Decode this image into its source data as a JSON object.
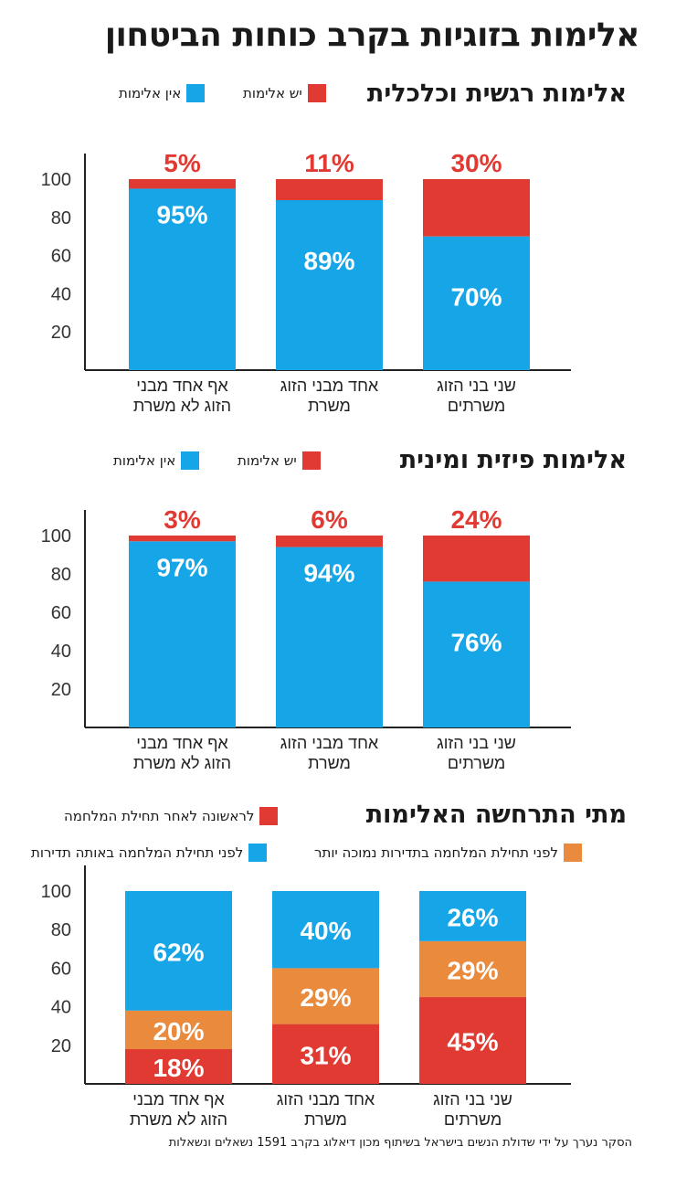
{
  "title": "אלימות בזוגיות בקרב כוחות הביטחון",
  "footnote": "הסקר נערך על ידי שדולת הנשים בישראל בשיתוף מכון דיאלוג בקרב 1591 נשאלים ונשאלות",
  "colors": {
    "red": "#e03a33",
    "blue": "#16a5e6",
    "orange": "#e98a3d",
    "axis": "#222222"
  },
  "chart_data": [
    {
      "type": "bar",
      "stacked": true,
      "title": "אלימות רגשית וכלכלית",
      "categories": [
        "שני בני הזוג משרתים",
        "אחד מבני הזוג משרת",
        "אף אחד מבני הזוג לא משרת"
      ],
      "category_lines": [
        [
          "שני בני הזוג",
          "משרתים"
        ],
        [
          "אחד מבני הזוג",
          "משרת"
        ],
        [
          "אף אחד מבני",
          "הזוג לא משרת"
        ]
      ],
      "series": [
        {
          "name": "אין אלימות",
          "color": "#16a5e6",
          "values": [
            70,
            89,
            95
          ],
          "labels": [
            "70%",
            "89%",
            "95%"
          ]
        },
        {
          "name": "יש אלימות",
          "color": "#e03a33",
          "values": [
            30,
            11,
            5
          ],
          "labels": [
            "30%",
            "11%",
            "5%"
          ]
        }
      ],
      "label_above_series": 1,
      "yticks": [
        20,
        40,
        60,
        80,
        100
      ],
      "ylim": [
        0,
        100
      ],
      "legend": [
        "יש אלימות",
        "אין אלימות"
      ]
    },
    {
      "type": "bar",
      "stacked": true,
      "title": "אלימות פיזית ומינית",
      "categories": [
        "שני בני הזוג משרתים",
        "אחד מבני הזוג משרת",
        "אף אחד מבני הזוג לא משרת"
      ],
      "category_lines": [
        [
          "שני בני הזוג",
          "משרתים"
        ],
        [
          "אחד מבני הזוג",
          "משרת"
        ],
        [
          "אף אחד מבני",
          "הזוג לא משרת"
        ]
      ],
      "series": [
        {
          "name": "אין אלימות",
          "color": "#16a5e6",
          "values": [
            76,
            94,
            97
          ],
          "labels": [
            "76%",
            "94%",
            "97%"
          ]
        },
        {
          "name": "יש אלימות",
          "color": "#e03a33",
          "values": [
            24,
            6,
            3
          ],
          "labels": [
            "24%",
            "6%",
            "3%"
          ]
        }
      ],
      "label_above_series": 1,
      "yticks": [
        20,
        40,
        60,
        80,
        100
      ],
      "ylim": [
        0,
        100
      ],
      "legend": [
        "יש אלימות",
        "אין אלימות"
      ]
    },
    {
      "type": "bar",
      "stacked": true,
      "title": "מתי התרחשה האלימות",
      "categories": [
        "שני בני הזוג משרתים",
        "אחד מבני הזוג משרת",
        "אף אחד מבני הזוג לא משרת"
      ],
      "category_lines": [
        [
          "שני בני הזוג",
          "משרתים"
        ],
        [
          "אחד מבני הזוג",
          "משרת"
        ],
        [
          "אף אחד מבני",
          "הזוג לא משרת"
        ]
      ],
      "series": [
        {
          "name": "לראשונה לאחר תחילת המלחמה",
          "color": "#e03a33",
          "values": [
            45,
            31,
            18
          ],
          "labels": [
            "45%",
            "31%",
            "18%"
          ]
        },
        {
          "name": "לפני תחילת המלחמה בתדירות נמוכה יותר",
          "color": "#e98a3d",
          "values": [
            29,
            29,
            20
          ],
          "labels": [
            "29%",
            "29%",
            "20%"
          ]
        },
        {
          "name": "לפני תחילת המלחמה באותה תדירות",
          "color": "#16a5e6",
          "values": [
            26,
            40,
            62
          ],
          "labels": [
            "26%",
            "40%",
            "62%"
          ]
        }
      ],
      "label_above_series": -1,
      "yticks": [
        20,
        40,
        60,
        80,
        100
      ],
      "ylim": [
        0,
        100
      ],
      "legend": [
        "לראשונה לאחר תחילת המלחמה",
        "לפני תחילת המלחמה בתדירות נמוכה יותר",
        "לפני תחילת המלחמה באותה תדירות"
      ]
    }
  ]
}
